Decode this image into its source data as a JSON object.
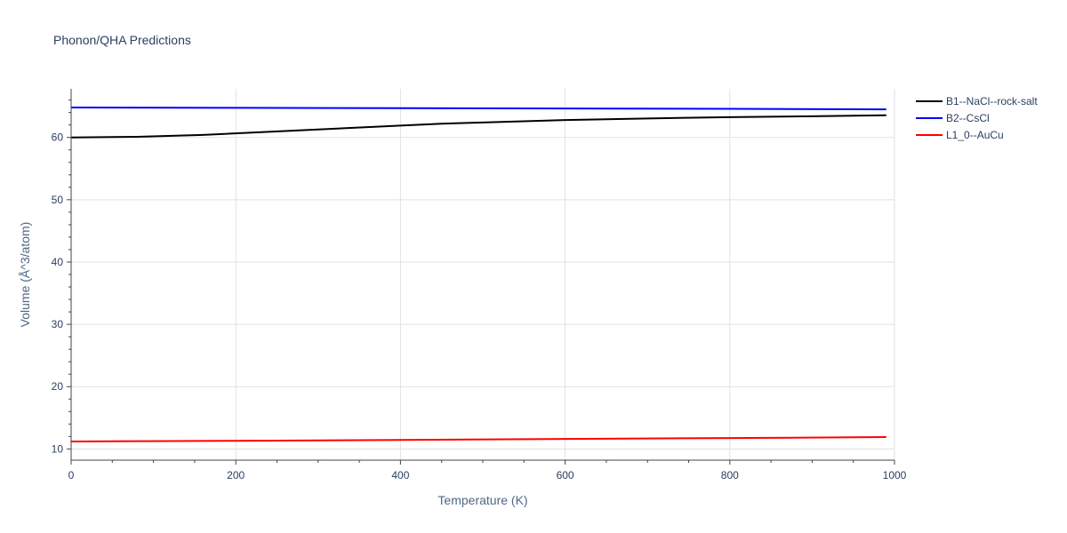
{
  "chart_data": {
    "type": "line",
    "title": "Phonon/QHA Predictions",
    "xlabel": "Temperature (K)",
    "ylabel": "Volume (Å^3/atom)",
    "xlim": [
      0,
      1000
    ],
    "ylim": [
      8.2,
      67.8
    ],
    "xticks": [
      0,
      200,
      400,
      600,
      800,
      1000
    ],
    "yticks": [
      10,
      20,
      30,
      40,
      50,
      60
    ],
    "grid": true,
    "legend_position": "top-right",
    "series": [
      {
        "name": "B1--NaCl--rock-salt",
        "color": "#000000",
        "x": [
          0,
          80,
          160,
          240,
          320,
          400,
          450,
          500,
          600,
          700,
          800,
          900,
          990
        ],
        "y": [
          60.0,
          60.1,
          60.4,
          60.9,
          61.4,
          61.9,
          62.2,
          62.4,
          62.8,
          63.05,
          63.25,
          63.4,
          63.55
        ]
      },
      {
        "name": "B2--CsCl",
        "color": "#0000ff",
        "x": [
          0,
          200,
          400,
          600,
          800,
          990
        ],
        "y": [
          64.8,
          64.75,
          64.7,
          64.65,
          64.6,
          64.5
        ]
      },
      {
        "name": "L1_0--AuCu",
        "color": "#ff0000",
        "x": [
          0,
          200,
          400,
          600,
          800,
          990
        ],
        "y": [
          11.2,
          11.3,
          11.45,
          11.6,
          11.75,
          11.9
        ]
      }
    ]
  }
}
